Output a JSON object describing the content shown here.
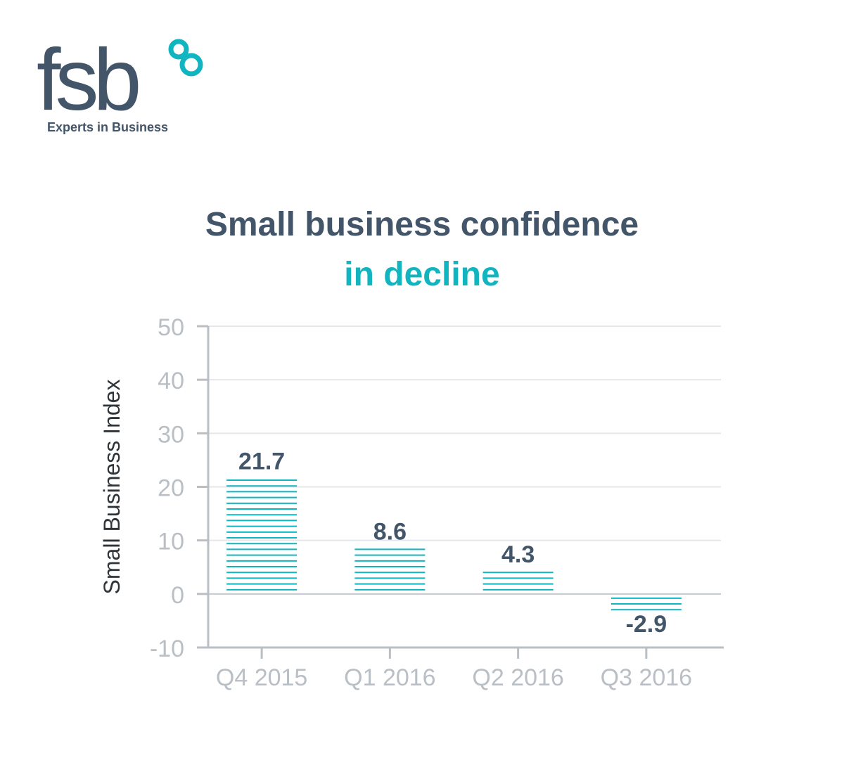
{
  "brand": {
    "logo_text": "fsb",
    "tagline": "Experts in Business",
    "colors": {
      "navy": "#435569",
      "teal": "#11b5bf",
      "axis": "#b9bfc4",
      "grid": "#e5e8ea"
    }
  },
  "headline": {
    "line1": "Small business confidence",
    "line2": "in decline"
  },
  "chart_data": {
    "type": "bar",
    "ylabel": "Small Business Index",
    "categories": [
      "Q4 2015",
      "Q1 2016",
      "Q2 2016",
      "Q3 2016"
    ],
    "values": [
      21.7,
      8.6,
      4.3,
      -2.9
    ],
    "value_labels": [
      "21.7",
      "8.6",
      "4.3",
      "-2.9"
    ],
    "yticks": [
      -10,
      0,
      10,
      20,
      30,
      40,
      50
    ],
    "ytick_labels": [
      "-10",
      "0",
      "10",
      "20",
      "30",
      "40",
      "50"
    ],
    "ylim": [
      -10,
      50
    ],
    "grid": true,
    "bar_fill": "horizontal-stripes",
    "bar_color": "#11b5bf",
    "label_color": "#435569"
  }
}
